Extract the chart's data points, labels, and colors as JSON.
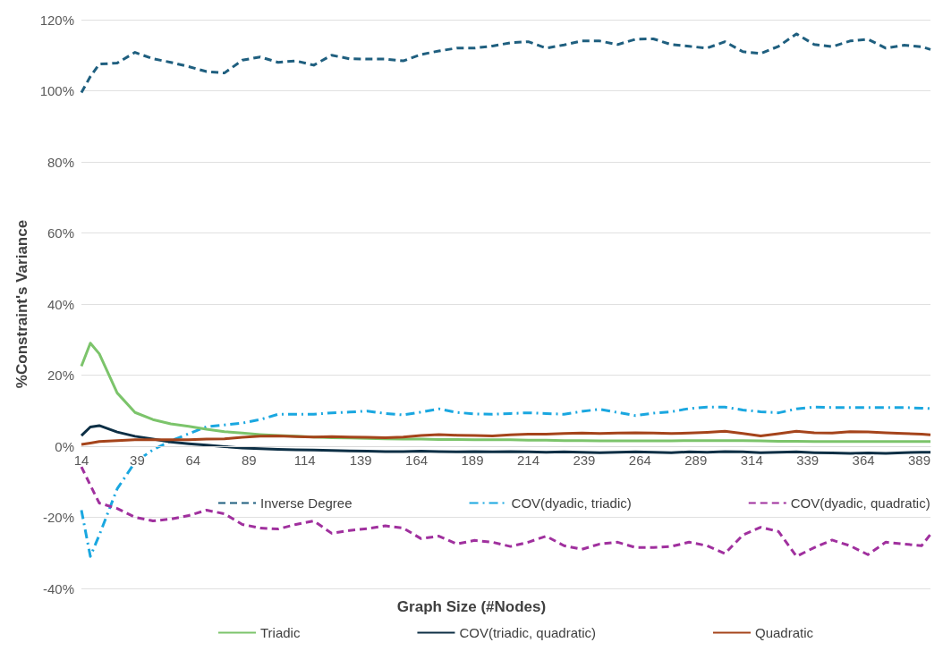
{
  "chart_data": {
    "type": "line",
    "xlabel": "Graph Size (#Nodes)",
    "ylabel": "%Constraint's Variance",
    "x": [
      14,
      18,
      22,
      30,
      38,
      46,
      54,
      62,
      70,
      78,
      86,
      94,
      102,
      110,
      118,
      126,
      134,
      142,
      150,
      158,
      166,
      174,
      182,
      190,
      198,
      206,
      214,
      222,
      230,
      238,
      246,
      254,
      262,
      270,
      278,
      286,
      294,
      302,
      310,
      318,
      326,
      334,
      342,
      350,
      358,
      366,
      374,
      382,
      390,
      394
    ],
    "xlim": [
      14,
      394
    ],
    "xticks": [
      14,
      39,
      64,
      89,
      114,
      139,
      164,
      189,
      214,
      239,
      264,
      289,
      314,
      339,
      364,
      389
    ],
    "ylim": [
      -40,
      120
    ],
    "yticks": [
      {
        "value": -40,
        "label": "-40%"
      },
      {
        "value": -20,
        "label": "-20%"
      },
      {
        "value": 0,
        "label": "0%"
      },
      {
        "value": 20,
        "label": "20%"
      },
      {
        "value": 40,
        "label": "40%"
      },
      {
        "value": 60,
        "label": "60%"
      },
      {
        "value": 80,
        "label": "80%"
      },
      {
        "value": 100,
        "label": "100%"
      },
      {
        "value": 120,
        "label": "120%"
      }
    ],
    "grid": "y",
    "legend": "bottom",
    "marker": "none",
    "series": [
      {
        "name": "Inverse Degree",
        "color": "#1f5f7f",
        "line_style": "dashed",
        "values": [
          99.5,
          104,
          107.5,
          107.8,
          110.8,
          109,
          108,
          106.8,
          105.4,
          105,
          108.6,
          109.5,
          108,
          108.4,
          107.2,
          110,
          109,
          108.9,
          108.9,
          108.4,
          110.2,
          111.2,
          112,
          112,
          112.6,
          113.5,
          113.8,
          112,
          112.9,
          114,
          114,
          113,
          114.5,
          114.6,
          113,
          112.5,
          112,
          113.8,
          111,
          110.5,
          112.5,
          116,
          113,
          112.4,
          114,
          114.5,
          112,
          112.8,
          112.4,
          111.6
        ]
      },
      {
        "name": "COV(dyadic, triadic)",
        "color": "#1aa7e0",
        "line_style": "dashdot",
        "values": [
          -18,
          -31,
          -25,
          -12,
          -4.5,
          -1,
          1.5,
          3.5,
          5.5,
          6,
          6.5,
          7.5,
          9,
          9,
          9,
          9.4,
          9.6,
          9.9,
          9.2,
          8.8,
          9.6,
          10.5,
          9.5,
          9.1,
          9,
          9.2,
          9.4,
          9.2,
          9,
          9.8,
          10.4,
          9.5,
          8.6,
          9.3,
          9.7,
          10.6,
          11,
          11,
          10.2,
          9.7,
          9.4,
          10.5,
          11,
          10.9,
          10.9,
          10.9,
          10.9,
          10.9,
          10.7,
          10.6
        ]
      },
      {
        "name": "COV(dyadic, quadratic)",
        "color": "#a0309e",
        "line_style": "dashed",
        "values": [
          -5.8,
          -11,
          -16,
          -17.5,
          -20,
          -21,
          -20.5,
          -19.5,
          -18,
          -19,
          -22,
          -23,
          -23.3,
          -22,
          -21,
          -24.5,
          -23.7,
          -23.2,
          -22.4,
          -23,
          -26,
          -25.3,
          -27.5,
          -26.5,
          -27,
          -28.2,
          -27,
          -25.3,
          -28,
          -29,
          -27.5,
          -27,
          -28.5,
          -28.5,
          -28.2,
          -27,
          -28,
          -30.2,
          -25,
          -22.8,
          -24,
          -31,
          -28.5,
          -26.4,
          -28,
          -30.5,
          -27,
          -27.5,
          -28,
          -24.8
        ]
      },
      {
        "name": "Triadic",
        "color": "#7cc46b",
        "line_style": "solid",
        "values": [
          22.5,
          29,
          26,
          15,
          9.5,
          7.5,
          6.3,
          5.6,
          4.8,
          4.1,
          3.7,
          3.3,
          3,
          2.8,
          2.6,
          2.4,
          2.3,
          2.2,
          2.1,
          2,
          2,
          1.9,
          1.9,
          1.8,
          1.8,
          1.8,
          1.7,
          1.7,
          1.6,
          1.6,
          1.5,
          1.5,
          1.5,
          1.5,
          1.5,
          1.6,
          1.6,
          1.6,
          1.6,
          1.5,
          1.4,
          1.4,
          1.3,
          1.3,
          1.3,
          1.3,
          1.3,
          1.3,
          1.3,
          1.3
        ]
      },
      {
        "name": "COV(triadic, quadratic)",
        "color": "#0d2f45",
        "line_style": "solid",
        "values": [
          3,
          5.4,
          5.8,
          4,
          2.8,
          2,
          1.2,
          0.7,
          0.3,
          -0.1,
          -0.5,
          -0.7,
          -0.9,
          -1,
          -1.1,
          -1.2,
          -1.3,
          -1.4,
          -1.5,
          -1.5,
          -1.4,
          -1.5,
          -1.6,
          -1.5,
          -1.6,
          -1.5,
          -1.6,
          -1.7,
          -1.6,
          -1.7,
          -1.8,
          -1.7,
          -1.6,
          -1.7,
          -1.8,
          -1.6,
          -1.7,
          -1.5,
          -1.6,
          -1.8,
          -1.7,
          -1.6,
          -1.8,
          -1.9,
          -2,
          -1.9,
          -2,
          -1.8,
          -1.7,
          -1.7
        ]
      },
      {
        "name": "Quadratic",
        "color": "#a5441b",
        "line_style": "solid",
        "values": [
          0.5,
          0.9,
          1.3,
          1.6,
          1.8,
          1.8,
          1.8,
          1.8,
          2,
          2.1,
          2.5,
          2.8,
          2.9,
          2.7,
          2.6,
          2.7,
          2.6,
          2.5,
          2.4,
          2.6,
          3,
          3.3,
          3.1,
          3,
          2.9,
          3.2,
          3.4,
          3.4,
          3.6,
          3.7,
          3.6,
          3.7,
          3.8,
          3.7,
          3.6,
          3.7,
          3.9,
          4.2,
          3.6,
          2.9,
          3.5,
          4.2,
          3.8,
          3.7,
          4.1,
          4,
          3.8,
          3.6,
          3.4,
          3.2
        ]
      }
    ]
  }
}
